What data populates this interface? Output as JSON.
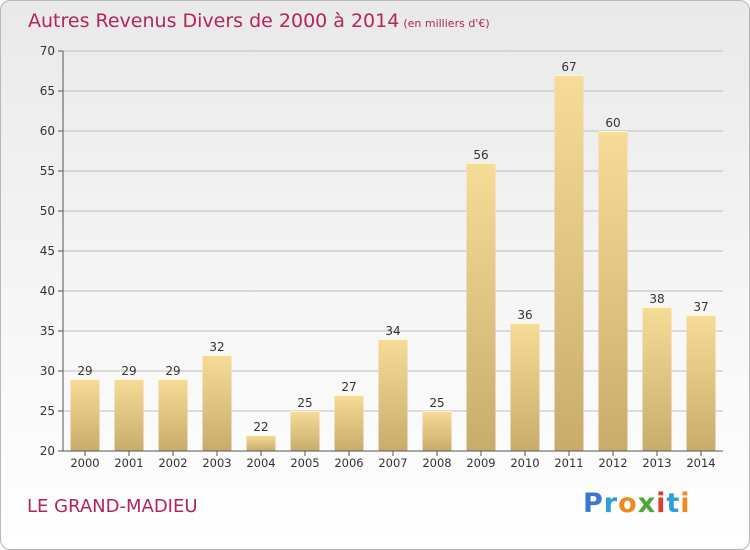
{
  "header": {
    "title": "Autres Revenus Divers de 2000 à 2014",
    "subtitle": "(en milliers d'€)"
  },
  "footer": {
    "commune": "LE GRAND-MADIEU",
    "brand": "Proxiti",
    "brand_letters": [
      {
        "ch": "P",
        "color": "#3b78c9"
      },
      {
        "ch": "r",
        "color": "#2e9fd8"
      },
      {
        "ch": "o",
        "color": "#f08a1c"
      },
      {
        "ch": "x",
        "color": "#4aa83a"
      },
      {
        "ch": "i",
        "color": "#e23b2f"
      },
      {
        "ch": "t",
        "color": "#2e9fd8"
      },
      {
        "ch": "i",
        "color": "#f08a1c"
      }
    ]
  },
  "colors": {
    "title": "#b5245e",
    "bar_light": "#f7dc98",
    "bar_dark": "#c8ac6c",
    "axis": "#555555",
    "grid": "#bdbdbd"
  },
  "chart_data": {
    "type": "bar",
    "categories": [
      "2000",
      "2001",
      "2002",
      "2003",
      "2004",
      "2005",
      "2006",
      "2007",
      "2008",
      "2009",
      "2010",
      "2011",
      "2012",
      "2013",
      "2014"
    ],
    "values": [
      29,
      29,
      29,
      32,
      22,
      25,
      27,
      34,
      25,
      56,
      36,
      67,
      60,
      38,
      37
    ],
    "ylim": [
      20,
      70
    ],
    "yticks": [
      20,
      25,
      30,
      35,
      40,
      45,
      50,
      55,
      60,
      65,
      70
    ],
    "grid": true,
    "data_labels": true
  }
}
